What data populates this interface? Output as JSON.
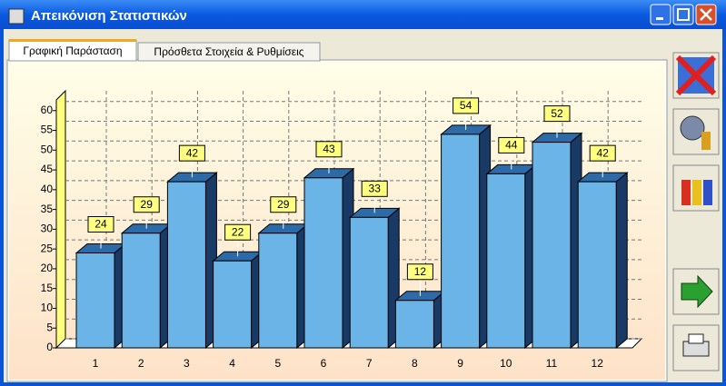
{
  "window": {
    "title": "Απεικόνιση Στατιστικών"
  },
  "tabs": [
    "Γραφική Παράσταση",
    "Πρόσθετα Στοιχεία & Ρυθμίσεις"
  ],
  "chart_data": {
    "type": "bar3d",
    "categories": [
      "1",
      "2",
      "3",
      "4",
      "5",
      "6",
      "7",
      "8",
      "9",
      "10",
      "11",
      "12"
    ],
    "values": [
      24,
      29,
      42,
      22,
      29,
      43,
      33,
      12,
      54,
      44,
      52,
      42
    ],
    "color": "#6ab4e8",
    "ylim": [
      0,
      65
    ],
    "yticks": [
      0,
      5,
      10,
      15,
      20,
      25,
      30,
      35,
      40,
      45,
      50,
      55,
      60
    ],
    "grid": true
  }
}
